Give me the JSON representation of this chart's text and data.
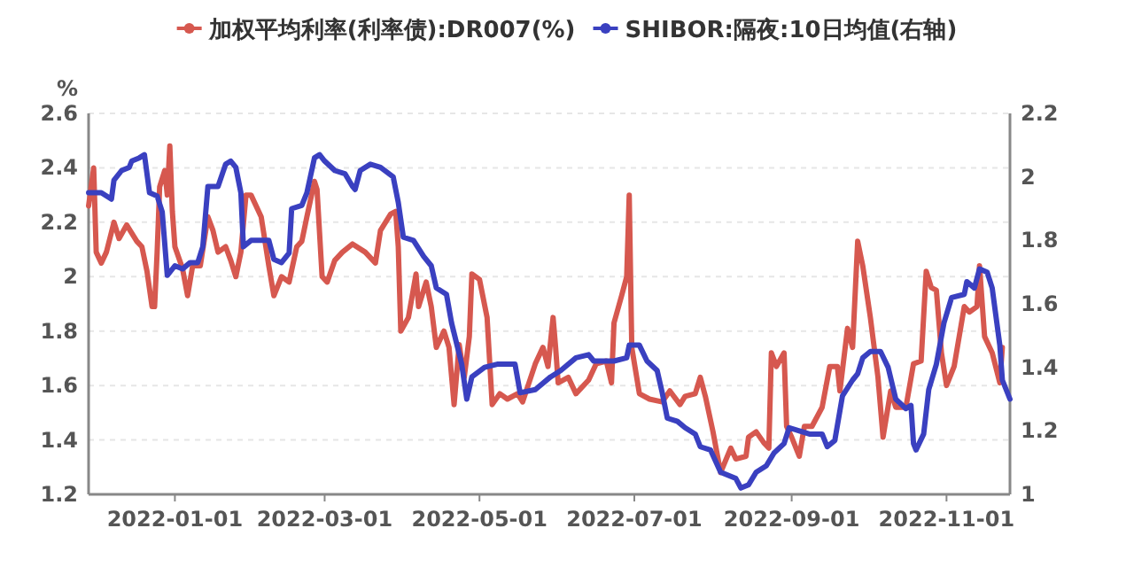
{
  "chart_data": {
    "type": "line",
    "xlim": [
      "2021-11-28",
      "2022-11-26"
    ],
    "xticks": [
      "2022-01-01",
      "2022-03-01",
      "2022-05-01",
      "2022-07-01",
      "2022-09-01",
      "2022-11-01"
    ],
    "ylabel": "%",
    "ylim": [
      1.2,
      2.6
    ],
    "yticks": [
      1.2,
      1.4,
      1.6,
      1.8,
      2,
      2.2,
      2.4,
      2.6
    ],
    "y2lim": [
      1,
      2.2
    ],
    "y2ticks": [
      1,
      1.2,
      1.4,
      1.6,
      1.8,
      2,
      2.2
    ],
    "grid": "y",
    "legend": "top",
    "marker": "none",
    "line_style": "solid",
    "series": [
      {
        "name": "加权平均利率(利率债):DR007(%)",
        "color": "#d6584f",
        "axis": "y",
        "x": [
          "2021-11-28",
          "2021-11-30",
          "2021-12-01",
          "2021-12-03",
          "2021-12-05",
          "2021-12-08",
          "2021-12-10",
          "2021-12-13",
          "2021-12-17",
          "2021-12-19",
          "2021-12-21",
          "2021-12-23",
          "2021-12-24",
          "2021-12-25",
          "2021-12-26",
          "2021-12-28",
          "2021-12-29",
          "2021-12-30",
          "2021-12-31",
          "2022-01-01",
          "2022-01-04",
          "2022-01-06",
          "2022-01-08",
          "2022-01-11",
          "2022-01-14",
          "2022-01-16",
          "2022-01-18",
          "2022-01-21",
          "2022-01-23",
          "2022-01-25",
          "2022-01-27",
          "2022-01-29",
          "2022-01-31",
          "2022-02-04",
          "2022-02-07",
          "2022-02-09",
          "2022-02-12",
          "2022-02-15",
          "2022-02-18",
          "2022-02-20",
          "2022-02-22",
          "2022-02-25",
          "2022-02-26",
          "2022-02-28",
          "2022-03-02",
          "2022-03-05",
          "2022-03-08",
          "2022-03-12",
          "2022-03-17",
          "2022-03-21",
          "2022-03-23",
          "2022-03-27",
          "2022-03-29",
          "2022-03-30",
          "2022-03-31",
          "2022-04-03",
          "2022-04-06",
          "2022-04-07",
          "2022-04-10",
          "2022-04-12",
          "2022-04-14",
          "2022-04-17",
          "2022-04-19",
          "2022-04-21",
          "2022-04-23",
          "2022-04-25",
          "2022-04-27",
          "2022-04-28",
          "2022-05-01",
          "2022-05-04",
          "2022-05-06",
          "2022-05-09",
          "2022-05-12",
          "2022-05-16",
          "2022-05-18",
          "2022-05-23",
          "2022-05-26",
          "2022-05-28",
          "2022-05-30",
          "2022-05-31",
          "2022-06-01",
          "2022-06-05",
          "2022-06-08",
          "2022-06-13",
          "2022-06-16",
          "2022-06-20",
          "2022-06-22",
          "2022-06-23",
          "2022-06-26",
          "2022-06-28",
          "2022-06-29",
          "2022-06-30",
          "2022-07-03",
          "2022-07-07",
          "2022-07-12",
          "2022-07-15",
          "2022-07-19",
          "2022-07-21",
          "2022-07-25",
          "2022-07-27",
          "2022-07-29",
          "2022-08-01",
          "2022-08-04",
          "2022-08-08",
          "2022-08-10",
          "2022-08-14",
          "2022-08-15",
          "2022-08-18",
          "2022-08-21",
          "2022-08-23",
          "2022-08-24",
          "2022-08-26",
          "2022-08-29",
          "2022-08-30",
          "2022-09-01",
          "2022-09-04",
          "2022-09-06",
          "2022-09-09",
          "2022-09-13",
          "2022-09-16",
          "2022-09-19",
          "2022-09-20",
          "2022-09-23",
          "2022-09-25",
          "2022-09-27",
          "2022-09-29",
          "2022-10-02",
          "2022-10-05",
          "2022-10-07",
          "2022-10-10",
          "2022-10-12",
          "2022-10-16",
          "2022-10-19",
          "2022-10-22",
          "2022-10-24",
          "2022-10-26",
          "2022-10-28",
          "2022-10-30",
          "2022-11-01",
          "2022-11-04",
          "2022-11-08",
          "2022-11-10",
          "2022-11-13",
          "2022-11-14",
          "2022-11-16",
          "2022-11-19",
          "2022-11-22",
          "2022-11-23"
        ],
        "values": [
          2.26,
          2.4,
          2.09,
          2.05,
          2.09,
          2.2,
          2.14,
          2.19,
          2.13,
          2.11,
          2.02,
          1.89,
          1.89,
          2.09,
          2.33,
          2.39,
          2.3,
          2.48,
          2.24,
          2.11,
          2.03,
          1.93,
          2.04,
          2.04,
          2.22,
          2.17,
          2.09,
          2.11,
          2.06,
          2.0,
          2.09,
          2.3,
          2.3,
          2.22,
          2.04,
          1.93,
          2.0,
          1.98,
          2.11,
          2.13,
          2.22,
          2.35,
          2.32,
          2.0,
          1.98,
          2.06,
          2.09,
          2.12,
          2.09,
          2.05,
          2.17,
          2.23,
          2.24,
          2.11,
          1.8,
          1.85,
          2.01,
          1.89,
          1.98,
          1.89,
          1.74,
          1.8,
          1.74,
          1.53,
          1.75,
          1.63,
          1.78,
          2.01,
          1.99,
          1.85,
          1.53,
          1.57,
          1.55,
          1.57,
          1.54,
          1.68,
          1.74,
          1.67,
          1.85,
          1.74,
          1.61,
          1.63,
          1.57,
          1.62,
          1.68,
          1.69,
          1.61,
          1.83,
          1.93,
          2.0,
          2.3,
          1.74,
          1.57,
          1.55,
          1.54,
          1.58,
          1.53,
          1.56,
          1.57,
          1.63,
          1.56,
          1.43,
          1.28,
          1.37,
          1.33,
          1.34,
          1.41,
          1.43,
          1.39,
          1.37,
          1.72,
          1.67,
          1.72,
          1.45,
          1.41,
          1.34,
          1.45,
          1.45,
          1.52,
          1.67,
          1.67,
          1.58,
          1.81,
          1.74,
          2.13,
          2.04,
          1.85,
          1.63,
          1.41,
          1.58,
          1.52,
          1.52,
          1.68,
          1.69,
          2.02,
          1.96,
          1.95,
          1.72,
          1.6,
          1.67,
          1.89,
          1.87,
          1.89,
          2.04,
          1.78,
          1.72,
          1.61,
          1.74
        ]
      },
      {
        "name": "SHIBOR:隔夜:10日均值(右轴)",
        "color": "#3a40c0",
        "axis": "y2",
        "x": [
          "2021-11-28",
          "2021-11-30",
          "2021-12-03",
          "2021-12-07",
          "2021-12-08",
          "2021-12-11",
          "2021-12-14",
          "2021-12-15",
          "2021-12-18",
          "2021-12-20",
          "2021-12-22",
          "2021-12-25",
          "2021-12-27",
          "2021-12-29",
          "2022-01-01",
          "2022-01-04",
          "2022-01-07",
          "2022-01-10",
          "2022-01-12",
          "2022-01-14",
          "2022-01-18",
          "2022-01-21",
          "2022-01-23",
          "2022-01-25",
          "2022-01-27",
          "2022-01-28",
          "2022-01-31",
          "2022-02-07",
          "2022-02-09",
          "2022-02-12",
          "2022-02-15",
          "2022-02-16",
          "2022-02-20",
          "2022-02-22",
          "2022-02-25",
          "2022-02-27",
          "2022-03-01",
          "2022-03-05",
          "2022-03-09",
          "2022-03-12",
          "2022-03-13",
          "2022-03-15",
          "2022-03-19",
          "2022-03-23",
          "2022-03-28",
          "2022-03-30",
          "2022-04-01",
          "2022-04-05",
          "2022-04-09",
          "2022-04-12",
          "2022-04-14",
          "2022-04-18",
          "2022-04-20",
          "2022-04-24",
          "2022-04-26",
          "2022-04-28",
          "2022-05-03",
          "2022-05-08",
          "2022-05-15",
          "2022-05-17",
          "2022-05-23",
          "2022-05-29",
          "2022-06-02",
          "2022-06-08",
          "2022-06-13",
          "2022-06-15",
          "2022-06-23",
          "2022-06-28",
          "2022-06-29",
          "2022-07-03",
          "2022-07-06",
          "2022-07-10",
          "2022-07-12",
          "2022-07-14",
          "2022-07-18",
          "2022-07-21",
          "2022-07-25",
          "2022-07-27",
          "2022-07-31",
          "2022-08-04",
          "2022-08-10",
          "2022-08-12",
          "2022-08-15",
          "2022-08-18",
          "2022-08-22",
          "2022-08-25",
          "2022-08-29",
          "2022-08-31",
          "2022-09-04",
          "2022-09-08",
          "2022-09-13",
          "2022-09-15",
          "2022-09-18",
          "2022-09-21",
          "2022-09-25",
          "2022-09-27",
          "2022-09-29",
          "2022-10-02",
          "2022-10-06",
          "2022-10-09",
          "2022-10-12",
          "2022-10-16",
          "2022-10-18",
          "2022-10-19",
          "2022-10-20",
          "2022-10-23",
          "2022-10-25",
          "2022-10-28",
          "2022-10-31",
          "2022-11-03",
          "2022-11-08",
          "2022-11-09",
          "2022-11-12",
          "2022-11-14",
          "2022-11-17",
          "2022-11-19",
          "2022-11-22",
          "2022-11-23",
          "2022-11-26"
        ],
        "values": [
          1.95,
          1.95,
          1.95,
          1.93,
          1.99,
          2.02,
          2.03,
          2.05,
          2.06,
          2.07,
          1.95,
          1.94,
          1.89,
          1.69,
          1.72,
          1.71,
          1.73,
          1.73,
          1.78,
          1.97,
          1.97,
          2.04,
          2.05,
          2.03,
          1.95,
          1.78,
          1.8,
          1.8,
          1.74,
          1.73,
          1.76,
          1.9,
          1.91,
          1.95,
          2.06,
          2.07,
          2.05,
          2.02,
          2.01,
          1.97,
          1.96,
          2.02,
          2.04,
          2.03,
          2.0,
          1.92,
          1.81,
          1.8,
          1.75,
          1.72,
          1.65,
          1.63,
          1.54,
          1.41,
          1.3,
          1.37,
          1.4,
          1.41,
          1.41,
          1.32,
          1.33,
          1.37,
          1.39,
          1.43,
          1.44,
          1.42,
          1.42,
          1.43,
          1.47,
          1.47,
          1.42,
          1.39,
          1.32,
          1.24,
          1.23,
          1.21,
          1.19,
          1.15,
          1.14,
          1.07,
          1.05,
          1.02,
          1.03,
          1.07,
          1.09,
          1.13,
          1.16,
          1.21,
          1.2,
          1.19,
          1.19,
          1.15,
          1.17,
          1.31,
          1.36,
          1.38,
          1.43,
          1.45,
          1.45,
          1.4,
          1.3,
          1.27,
          1.28,
          1.16,
          1.14,
          1.19,
          1.33,
          1.41,
          1.54,
          1.62,
          1.63,
          1.67,
          1.65,
          1.71,
          1.7,
          1.65,
          1.47,
          1.36,
          1.3
        ]
      }
    ]
  }
}
